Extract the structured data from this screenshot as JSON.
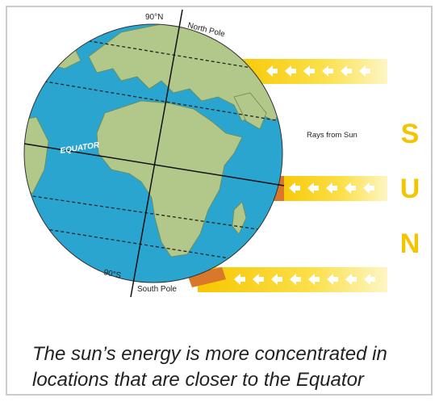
{
  "labels": {
    "north_latitude": "90°N",
    "north_pole": "North Pole",
    "rays": "Rays from Sun",
    "sun_letters": [
      "S",
      "U",
      "N"
    ],
    "equator": "EQUATOR",
    "south_latitude": "90°S",
    "south_pole": "South Pole"
  },
  "caption": [
    "The sun’s energy is more concentrated in",
    "locations that are closer to the Equator"
  ]
}
